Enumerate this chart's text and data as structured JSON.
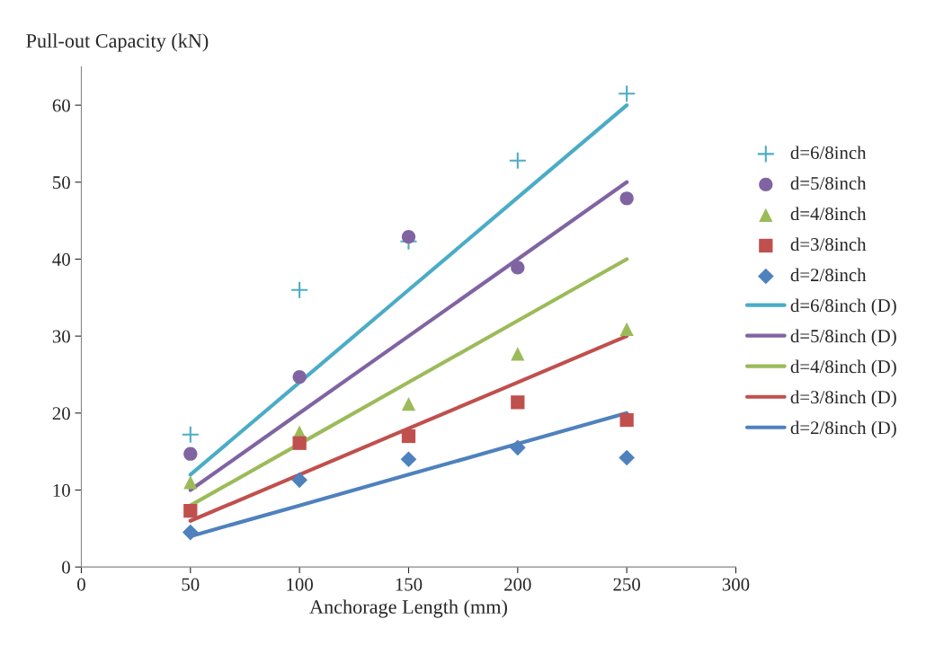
{
  "chart_data": {
    "type": "scatter",
    "xlabel": "Anchorage Length (mm)",
    "ylabel": "Pull-out Capacity (kN)",
    "x": [
      50,
      100,
      150,
      200,
      250
    ],
    "xlim": [
      0,
      300
    ],
    "xticks": [
      0,
      50,
      100,
      150,
      200,
      250,
      300
    ],
    "ylim": [
      0,
      65
    ],
    "yticks": [
      0,
      10,
      20,
      30,
      40,
      50,
      60
    ],
    "grid": false,
    "legend": "right",
    "series": [
      {
        "name": "d=6/8inch",
        "marker": "cross",
        "color": "#4bacc6",
        "values": [
          17.2,
          36.0,
          42.3,
          52.8,
          61.5
        ]
      },
      {
        "name": "d=5/8inch",
        "marker": "circle",
        "color": "#8064a2",
        "values": [
          14.7,
          24.7,
          42.9,
          38.9,
          47.9
        ]
      },
      {
        "name": "d=4/8inch",
        "marker": "triangle",
        "color": "#9bbb59",
        "values": [
          11.0,
          17.5,
          21.2,
          27.7,
          30.9
        ]
      },
      {
        "name": "d=3/8inch",
        "marker": "square",
        "color": "#c0504d",
        "values": [
          7.3,
          16.1,
          17.0,
          21.4,
          19.1
        ]
      },
      {
        "name": "d=2/8inch",
        "marker": "diamond",
        "color": "#4f81bd",
        "values": [
          4.5,
          11.3,
          14.0,
          15.5,
          14.2
        ]
      },
      {
        "name": "d=6/8inch (D)",
        "type": "line",
        "marker": "none",
        "color": "#4bacc6",
        "values": [
          12,
          24,
          36,
          48,
          60
        ]
      },
      {
        "name": "d=5/8inch (D)",
        "type": "line",
        "marker": "none",
        "color": "#8064a2",
        "values": [
          10,
          20,
          30,
          40,
          50
        ]
      },
      {
        "name": "d=4/8inch (D)",
        "type": "line",
        "marker": "none",
        "color": "#9bbb59",
        "values": [
          8,
          16,
          24,
          32,
          40
        ]
      },
      {
        "name": "d=3/8inch (D)",
        "type": "line",
        "marker": "none",
        "color": "#c0504d",
        "values": [
          6,
          12,
          18,
          24,
          30
        ]
      },
      {
        "name": "d=2/8inch (D)",
        "type": "line",
        "marker": "none",
        "color": "#4f81bd",
        "values": [
          4,
          8,
          12,
          16,
          20
        ]
      }
    ]
  }
}
